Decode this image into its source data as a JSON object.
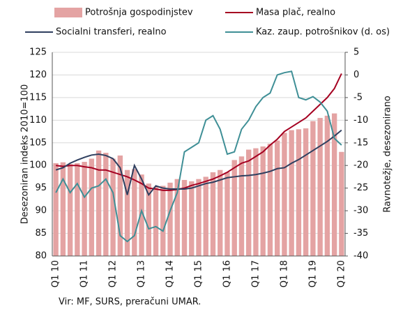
{
  "chart_data": {
    "type": "bar",
    "categories": [
      "Q1 10",
      null,
      null,
      null,
      "Q1 11",
      null,
      null,
      null,
      "Q1 12",
      null,
      null,
      null,
      "Q1 13",
      null,
      null,
      null,
      "Q1 14",
      null,
      null,
      null,
      "Q1 15",
      null,
      null,
      null,
      "Q1 16",
      null,
      null,
      null,
      "Q1 17",
      null,
      null,
      null,
      "Q1 18",
      null,
      null,
      null,
      "Q1 19",
      null,
      null,
      null,
      "Q1 20"
    ],
    "series": [
      {
        "name": "Potrošnja gospodinjstev",
        "type": "bar",
        "color": "#e4a3a3",
        "values": [
          100.5,
          100.7,
          100.3,
          100.5,
          100.8,
          101.5,
          103.3,
          102.8,
          101.5,
          102.2,
          99.0,
          99.2,
          98.0,
          96.0,
          95.3,
          95.5,
          96.2,
          97.0,
          96.8,
          96.5,
          97.0,
          97.5,
          98.5,
          99.0,
          98.5,
          101.2,
          102.0,
          103.5,
          103.8,
          104.2,
          104.8,
          105.5,
          107.2,
          107.8,
          108.0,
          108.2,
          109.8,
          110.5,
          111.0,
          111.5,
          103.0
        ]
      },
      {
        "name": "Masa plač, realno",
        "type": "line",
        "color": "#a50021",
        "values": [
          100.0,
          99.8,
          100.0,
          100.0,
          99.7,
          99.5,
          99.0,
          99.0,
          98.5,
          98.0,
          97.5,
          96.8,
          96.0,
          95.0,
          94.8,
          94.5,
          94.5,
          94.7,
          95.0,
          95.6,
          96.0,
          96.5,
          97.0,
          97.7,
          98.5,
          99.5,
          100.5,
          101.0,
          102.0,
          103.0,
          104.5,
          105.8,
          107.5,
          108.5,
          109.5,
          110.5,
          112.0,
          113.5,
          115.0,
          117.0,
          120.3
        ]
      },
      {
        "name": "Socialni transferi, realno",
        "type": "line",
        "color": "#2f3f5f",
        "values": [
          99.0,
          99.5,
          100.5,
          101.2,
          101.8,
          102.3,
          102.5,
          102.2,
          101.5,
          99.5,
          93.5,
          100.0,
          97.0,
          93.5,
          95.5,
          95.0,
          94.8,
          94.8,
          94.8,
          95.0,
          95.5,
          96.0,
          96.3,
          96.8,
          97.3,
          97.5,
          97.7,
          97.8,
          98.0,
          98.3,
          98.7,
          99.3,
          99.5,
          100.5,
          101.3,
          102.3,
          103.3,
          104.3,
          105.3,
          106.5,
          107.8
        ]
      },
      {
        "name": "Kaz. zaup. potrošnikov (d. os)",
        "type": "line",
        "axis": "y2",
        "color": "#3f8f96",
        "values": [
          -26,
          -23,
          -26,
          -24,
          -27,
          -25,
          -24.5,
          -23,
          -26,
          -35.5,
          -36.8,
          -35.5,
          -30,
          -34,
          -33.5,
          -34.5,
          -30,
          -26,
          -17,
          -16,
          -15,
          -10,
          -9,
          -12,
          -17.5,
          -17,
          -12,
          -10,
          -7,
          -5,
          -4,
          0,
          0.5,
          0.8,
          -5,
          -5.5,
          -4.8,
          -6,
          -8,
          -14,
          -15.5
        ]
      }
    ],
    "ylabel": "Desezoniran indeks 2010=100",
    "y2label": "Ravnotežje, desezonirano",
    "ylim": [
      80,
      125
    ],
    "yticks": [
      80,
      85,
      90,
      95,
      100,
      105,
      110,
      115,
      120,
      125
    ],
    "y2lim": [
      -40,
      5
    ],
    "y2ticks": [
      -40,
      -35,
      -30,
      -25,
      -20,
      -15,
      -10,
      -5,
      0,
      5
    ],
    "grid": true,
    "source": "Vir: MF, SURS, preračuni UMAR."
  }
}
